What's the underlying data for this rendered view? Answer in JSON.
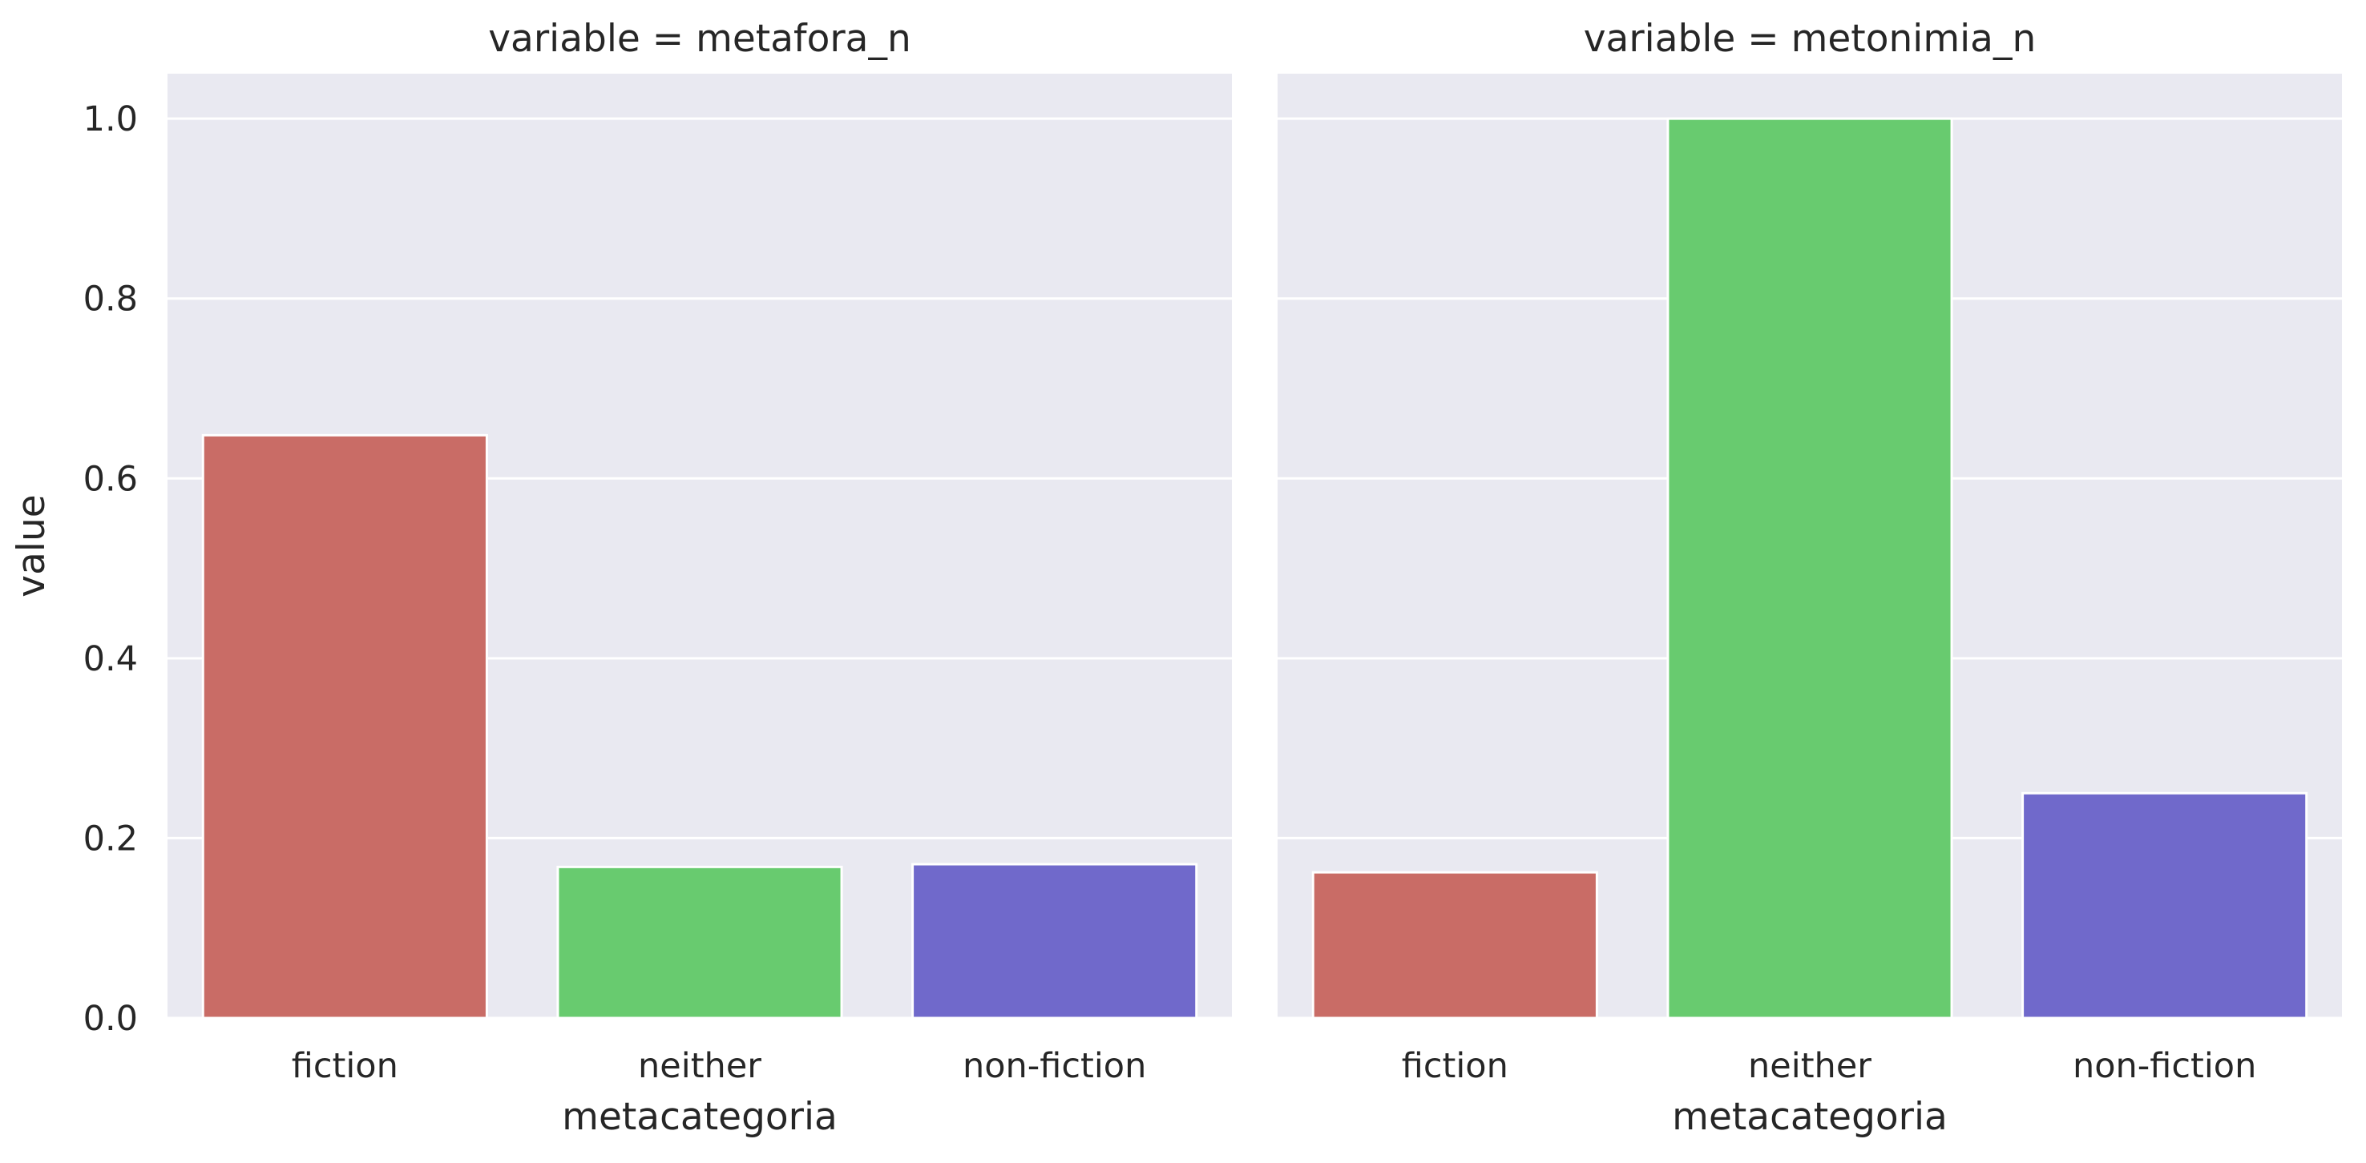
{
  "chart_data": [
    {
      "type": "bar",
      "title": "variable = metafora_n",
      "categories": [
        "fiction",
        "neither",
        "non-fiction"
      ],
      "values": [
        0.648,
        0.168,
        0.171
      ],
      "xlabel": "metacategoria",
      "ylabel": "value",
      "ylim": [
        0,
        1.05
      ],
      "yticks": [
        0.0,
        0.2,
        0.4,
        0.6,
        0.8,
        1.0
      ],
      "ytick_labels": [
        "0.0",
        "0.2",
        "0.4",
        "0.6",
        "0.8",
        "1.0"
      ],
      "colors": [
        "#c96c66",
        "#68cb6f",
        "#7069cb"
      ],
      "grid": true
    },
    {
      "type": "bar",
      "title": "variable = metonimia_n",
      "categories": [
        "fiction",
        "neither",
        "non-fiction"
      ],
      "values": [
        0.162,
        1.0,
        0.25
      ],
      "xlabel": "metacategoria",
      "ylabel": "",
      "ylim": [
        0,
        1.05
      ],
      "yticks": [
        0.0,
        0.2,
        0.4,
        0.6,
        0.8,
        1.0
      ],
      "ytick_labels": [],
      "colors": [
        "#c96c66",
        "#68cb6f",
        "#7069cb"
      ],
      "grid": true
    }
  ],
  "style": {
    "panel_background": "#e9e9f1",
    "grid_color": "#ffffff",
    "text_color": "#262626"
  }
}
